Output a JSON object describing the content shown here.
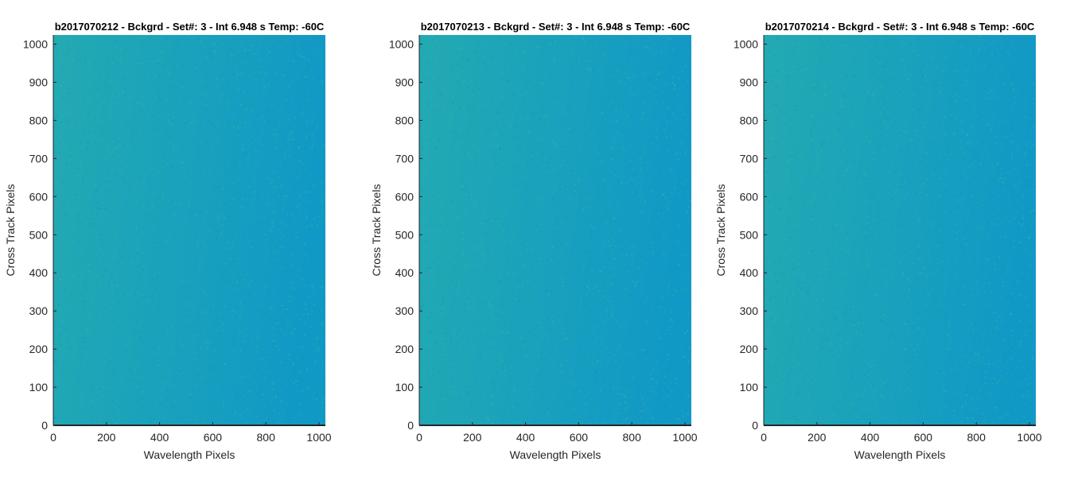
{
  "chart_data": [
    {
      "type": "heatmap",
      "title": "b2017070212 - Bckgrd - Set#: 3 - Int 6.948 s Temp: -60C",
      "xlabel": "Wavelength Pixels",
      "ylabel": "Cross Track Pixels",
      "xlim": [
        0,
        1024
      ],
      "ylim": [
        0,
        1024
      ],
      "xticks": [
        0,
        200,
        400,
        600,
        800,
        1000
      ],
      "yticks": [
        0,
        100,
        200,
        300,
        400,
        500,
        600,
        700,
        800,
        900,
        1000
      ],
      "colors": {
        "low": "#1199c6",
        "high": "#23aab2"
      }
    },
    {
      "type": "heatmap",
      "title": "b2017070213 - Bckgrd - Set#: 3 - Int 6.948 s Temp: -60C",
      "xlabel": "Wavelength Pixels",
      "ylabel": "Cross Track Pixels",
      "xlim": [
        0,
        1024
      ],
      "ylim": [
        0,
        1024
      ],
      "xticks": [
        0,
        200,
        400,
        600,
        800,
        1000
      ],
      "yticks": [
        0,
        100,
        200,
        300,
        400,
        500,
        600,
        700,
        800,
        900,
        1000
      ],
      "colors": {
        "low": "#1199c6",
        "high": "#23aab2"
      }
    },
    {
      "type": "heatmap",
      "title": "b2017070214 - Bckgrd - Set#: 3 - Int 6.948 s Temp: -60C",
      "xlabel": "Wavelength Pixels",
      "ylabel": "Cross Track Pixels",
      "xlim": [
        0,
        1024
      ],
      "ylim": [
        0,
        1024
      ],
      "xticks": [
        0,
        200,
        400,
        600,
        800,
        1000
      ],
      "yticks": [
        0,
        100,
        200,
        300,
        400,
        500,
        600,
        700,
        800,
        900,
        1000
      ],
      "colors": {
        "low": "#1199c6",
        "high": "#23aab2"
      }
    }
  ]
}
